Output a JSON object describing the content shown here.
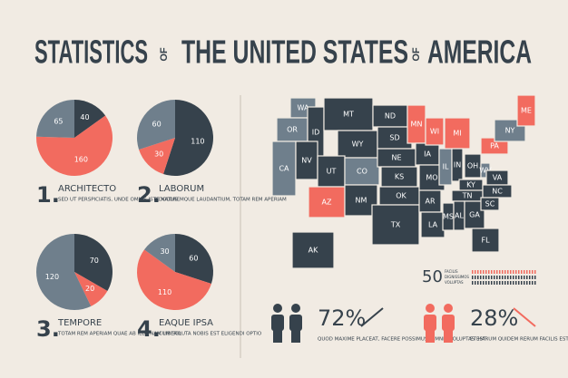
{
  "title": {
    "part1": "STATISTICS",
    "of1": "OF",
    "part2": "THE UNITED STATES",
    "of2": "OF",
    "part3": "AMERICA"
  },
  "chart_data": [
    {
      "type": "pie",
      "number": "1.",
      "label": "ARCHITECTO",
      "text": "SED UT PERSPICIATIS, UNDE OMNIS ISTE NATUS",
      "values": [
        40,
        160,
        65
      ],
      "colors": [
        "#36424c",
        "#f26b5f",
        "#6f7f8c"
      ]
    },
    {
      "type": "pie",
      "number": "2.",
      "label": "LABORUM",
      "text": "DOLOREMQUE LAUDANTIUM, TOTAM REM APERIAM",
      "values": [
        110,
        30,
        60
      ],
      "colors": [
        "#36424c",
        "#f26b5f",
        "#6f7f8c"
      ]
    },
    {
      "type": "pie",
      "number": "3.",
      "label": "TEMPORE",
      "text": "TOTAM REM APERIAM QUAE AB ILLO NAM LIBERO",
      "values": [
        70,
        20,
        120
      ],
      "colors": [
        "#36424c",
        "#f26b5f",
        "#6f7f8c"
      ]
    },
    {
      "type": "pie",
      "number": "4.",
      "label": "EAQUE IPSA",
      "text": "CUM SOLUTA NOBIS EST ELIGENDI OPTIO",
      "values": [
        60,
        110,
        30
      ],
      "colors": [
        "#36424c",
        "#f26b5f",
        "#6f7f8c"
      ]
    }
  ],
  "map": {
    "states": [
      {
        "label": "WA",
        "color": "#6f7f8c"
      },
      {
        "label": "OR",
        "color": "#6f7f8c"
      },
      {
        "label": "CA",
        "color": "#6f7f8c"
      },
      {
        "label": "ID",
        "color": "#36424c"
      },
      {
        "label": "NV",
        "color": "#36424c"
      },
      {
        "label": "MT",
        "color": "#36424c"
      },
      {
        "label": "WY",
        "color": "#36424c"
      },
      {
        "label": "UT",
        "color": "#36424c"
      },
      {
        "label": "AZ",
        "color": "#f26b5f"
      },
      {
        "label": "CO",
        "color": "#6f7f8c"
      },
      {
        "label": "NM",
        "color": "#36424c"
      },
      {
        "label": "ND",
        "color": "#36424c"
      },
      {
        "label": "SD",
        "color": "#36424c"
      },
      {
        "label": "NE",
        "color": "#36424c"
      },
      {
        "label": "KS",
        "color": "#36424c"
      },
      {
        "label": "OK",
        "color": "#36424c"
      },
      {
        "label": "TX",
        "color": "#36424c"
      },
      {
        "label": "MN",
        "color": "#f26b5f"
      },
      {
        "label": "IA",
        "color": "#36424c"
      },
      {
        "label": "MO",
        "color": "#36424c"
      },
      {
        "label": "AR",
        "color": "#36424c"
      },
      {
        "label": "LA",
        "color": "#36424c"
      },
      {
        "label": "WI",
        "color": "#f26b5f"
      },
      {
        "label": "IL",
        "color": "#6f7f8c"
      },
      {
        "label": "MS",
        "color": "#36424c"
      },
      {
        "label": "MI",
        "color": "#f26b5f"
      },
      {
        "label": "IN",
        "color": "#36424c"
      },
      {
        "label": "KY",
        "color": "#36424c"
      },
      {
        "label": "TN",
        "color": "#36424c"
      },
      {
        "label": "AL",
        "color": "#36424c"
      },
      {
        "label": "GA",
        "color": "#36424c"
      },
      {
        "label": "FL",
        "color": "#36424c"
      },
      {
        "label": "OH",
        "color": "#36424c"
      },
      {
        "label": "WV",
        "color": "#6f7f8c"
      },
      {
        "label": "VA",
        "color": "#36424c"
      },
      {
        "label": "NC",
        "color": "#36424c"
      },
      {
        "label": "SC",
        "color": "#36424c"
      },
      {
        "label": "PA",
        "color": "#f26b5f"
      },
      {
        "label": "NY",
        "color": "#6f7f8c"
      },
      {
        "label": "ME",
        "color": "#f26b5f"
      },
      {
        "label": "AK",
        "color": "#36424c"
      }
    ]
  },
  "stat": {
    "value": "50",
    "words": [
      "FACILIS",
      "DIGNISSIMOS",
      "VOLUPTAS"
    ]
  },
  "people": [
    {
      "value": 72,
      "label": "72%",
      "text": "QUOD MAXIME PLACEAT, FACERE POSSIMUS, OMNIS VOLUPTAS EST",
      "color": "#36424c"
    },
    {
      "value": 28,
      "label": "28%",
      "text": "ET HARUM QUIDEM RERUM FACILIS EST ET EXPEDITA DISTINCTIO",
      "color": "#f26b5f"
    }
  ]
}
